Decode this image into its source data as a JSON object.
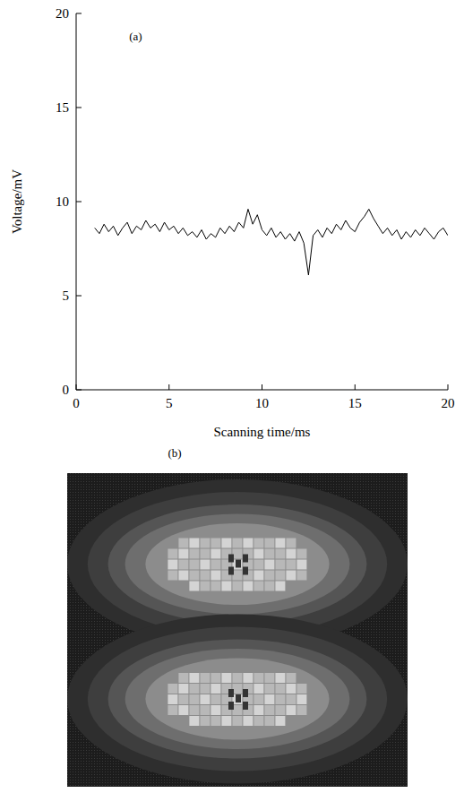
{
  "chart_data": [
    {
      "type": "line",
      "title": "(a)",
      "x_label": "Scanning time/ms",
      "y_label": "Voltage/mV",
      "xlim": [
        0,
        20
      ],
      "ylim": [
        0,
        20
      ],
      "xticks": [
        0,
        5,
        10,
        15,
        20
      ],
      "yticks": [
        0,
        5,
        10,
        15,
        20
      ],
      "color": "#000000",
      "x": [
        1.0,
        1.25,
        1.5,
        1.75,
        2.0,
        2.25,
        2.5,
        2.75,
        3.0,
        3.25,
        3.5,
        3.75,
        4.0,
        4.25,
        4.5,
        4.75,
        5.0,
        5.25,
        5.5,
        5.75,
        6.0,
        6.25,
        6.5,
        6.75,
        7.0,
        7.25,
        7.5,
        7.75,
        8.0,
        8.25,
        8.5,
        8.75,
        9.0,
        9.25,
        9.5,
        9.75,
        10.0,
        10.25,
        10.5,
        10.75,
        11.0,
        11.25,
        11.5,
        11.75,
        12.0,
        12.25,
        12.5,
        12.75,
        13.0,
        13.25,
        13.5,
        13.75,
        14.0,
        14.25,
        14.5,
        14.75,
        15.0,
        15.25,
        15.5,
        15.75,
        16.0,
        16.25,
        16.5,
        16.75,
        17.0,
        17.25,
        17.5,
        17.75,
        18.0,
        18.25,
        18.5,
        18.75,
        19.0,
        19.25,
        19.5,
        19.75,
        20.0
      ],
      "values": [
        8.6,
        8.3,
        8.8,
        8.4,
        8.7,
        8.2,
        8.6,
        8.9,
        8.3,
        8.7,
        8.5,
        9.0,
        8.6,
        8.8,
        8.4,
        8.9,
        8.5,
        8.7,
        8.3,
        8.6,
        8.2,
        8.4,
        8.1,
        8.5,
        8.0,
        8.3,
        8.1,
        8.6,
        8.3,
        8.7,
        8.4,
        8.9,
        8.6,
        9.6,
        8.8,
        9.3,
        8.5,
        8.2,
        8.6,
        8.1,
        8.4,
        8.0,
        8.3,
        7.9,
        8.4,
        7.8,
        6.1,
        8.2,
        8.5,
        8.1,
        8.6,
        8.3,
        8.8,
        8.5,
        9.0,
        8.6,
        8.4,
        8.9,
        9.2,
        9.6,
        9.1,
        8.7,
        8.3,
        8.6,
        8.2,
        8.5,
        8.0,
        8.4,
        8.1,
        8.5,
        8.2,
        8.6,
        8.3,
        8.0,
        8.4,
        8.6,
        8.2
      ]
    },
    {
      "type": "image",
      "title": "(b)"
    }
  ]
}
